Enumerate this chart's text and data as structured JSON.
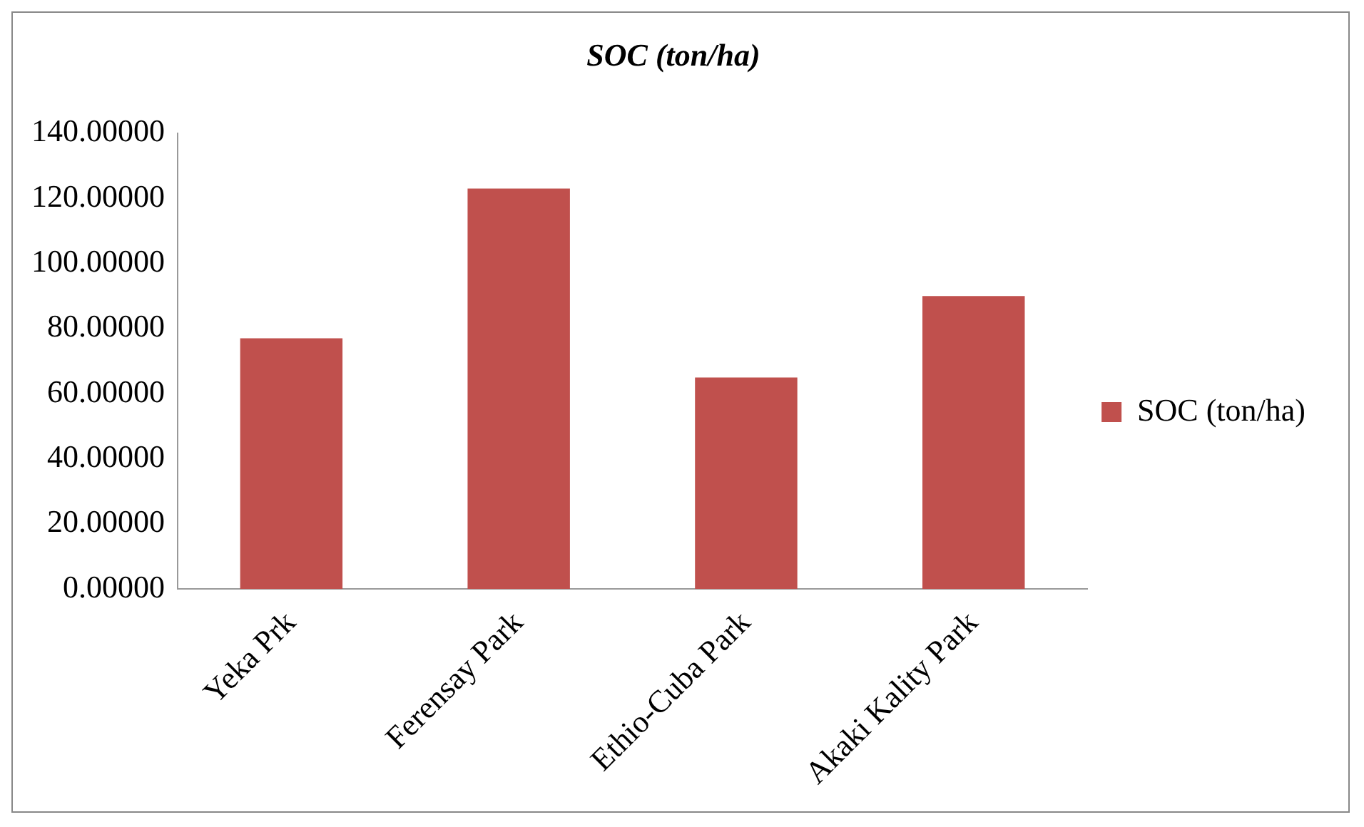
{
  "chart_data": {
    "type": "bar",
    "title": "SOC (ton/ha)",
    "categories": [
      "Yeka Prk",
      "Ferensay Park",
      "Ethio-Cuba Park",
      "Akaki Kality Park"
    ],
    "series": [
      {
        "name": "SOC (ton/ha)",
        "color": "#c0504d",
        "values": [
          77,
          123,
          65,
          90
        ]
      }
    ],
    "ylim": [
      0,
      140
    ],
    "yticks": [
      {
        "value": 0,
        "label": "0.00000"
      },
      {
        "value": 20,
        "label": "20.00000"
      },
      {
        "value": 40,
        "label": "40.00000"
      },
      {
        "value": 60,
        "label": "60.00000"
      },
      {
        "value": 80,
        "label": "80.00000"
      },
      {
        "value": 100,
        "label": "100.00000"
      },
      {
        "value": 120,
        "label": "120.00000"
      },
      {
        "value": 140,
        "label": "140.00000"
      }
    ],
    "grid": false,
    "legend": "right"
  }
}
